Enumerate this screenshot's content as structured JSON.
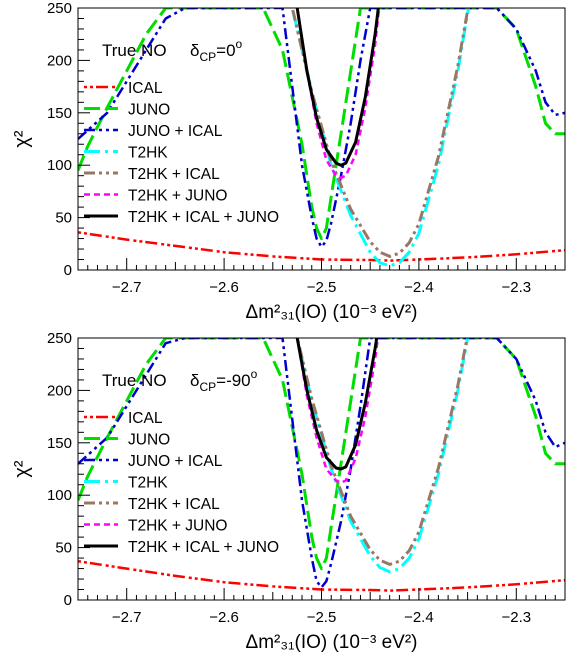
{
  "chart_data": [
    {
      "type": "line",
      "annotation": "True NO",
      "delta_label": "δ",
      "delta_sub": "CP",
      "delta_value": "=0",
      "delta_sup": "o",
      "xlabel": "Δm²₃₁(IO) (10⁻³ eV²)",
      "ylabel": "χ²",
      "xlim": [
        -2.75,
        -2.25
      ],
      "ylim": [
        0,
        250
      ],
      "xticks": [
        -2.7,
        -2.6,
        -2.5,
        -2.4,
        -2.3
      ],
      "xtick_labels": [
        "−2.7",
        "−2.6",
        "−2.5",
        "−2.4",
        "−2.3"
      ],
      "yticks": [
        0,
        50,
        100,
        150,
        200,
        250
      ],
      "ytick_labels": [
        "0",
        "50",
        "100",
        "150",
        "200",
        "250"
      ],
      "legend_position": "left",
      "series": [
        {
          "name": "ICAL",
          "color": "#ff0000",
          "dash": "dotdotdash",
          "width": 2.5,
          "x": [
            -2.75,
            -2.7,
            -2.65,
            -2.6,
            -2.55,
            -2.5,
            -2.45,
            -2.43,
            -2.4,
            -2.35,
            -2.3,
            -2.25
          ],
          "y": [
            36,
            29,
            23,
            17,
            13,
            10,
            9.5,
            9,
            10,
            12,
            15,
            19
          ]
        },
        {
          "name": "JUNO",
          "color": "#00dd00",
          "dash": "longdash",
          "width": 3,
          "x": [
            -2.75,
            -2.74,
            -2.72,
            -2.7,
            -2.68,
            -2.66,
            -2.65,
            -2.64,
            -2.62,
            -2.6,
            -2.58,
            -2.56,
            -2.54,
            -2.52,
            -2.51,
            -2.505,
            -2.5,
            -2.495,
            -2.49,
            -2.48,
            -2.46,
            -2.45,
            -2.44,
            -2.42,
            -2.4,
            -2.38,
            -2.36,
            -2.34,
            -2.32,
            -2.3,
            -2.28,
            -2.27,
            -2.26,
            -2.25
          ],
          "y": [
            95,
            118,
            155,
            190,
            225,
            250,
            250,
            250,
            250,
            250,
            250,
            250,
            210,
            120,
            60,
            40,
            30,
            40,
            70,
            130,
            250,
            250,
            250,
            250,
            250,
            250,
            250,
            250,
            250,
            230,
            175,
            140,
            130,
            130
          ]
        },
        {
          "name": "JUNO + ICAL",
          "color": "#0000cc",
          "dash": "dashdotdot",
          "width": 2.5,
          "x": [
            -2.75,
            -2.72,
            -2.7,
            -2.68,
            -2.66,
            -2.64,
            -2.62,
            -2.6,
            -2.58,
            -2.56,
            -2.54,
            -2.52,
            -2.51,
            -2.505,
            -2.5,
            -2.495,
            -2.49,
            -2.48,
            -2.47,
            -2.46,
            -2.45,
            -2.44,
            -2.42,
            -2.4,
            -2.38,
            -2.36,
            -2.34,
            -2.32,
            -2.3,
            -2.28,
            -2.27,
            -2.26,
            -2.25
          ],
          "y": [
            125,
            150,
            180,
            210,
            240,
            250,
            250,
            250,
            250,
            250,
            250,
            100,
            50,
            30,
            22,
            28,
            45,
            90,
            140,
            200,
            250,
            250,
            250,
            250,
            250,
            250,
            250,
            250,
            230,
            190,
            160,
            148,
            150
          ]
        },
        {
          "name": "T2HK",
          "color": "#00ffff",
          "dash": "dashdot",
          "width": 3,
          "x": [
            -2.55,
            -2.53,
            -2.51,
            -2.49,
            -2.47,
            -2.45,
            -2.44,
            -2.43,
            -2.42,
            -2.41,
            -2.4,
            -2.38,
            -2.36,
            -2.34
          ],
          "y": [
            300,
            250,
            170,
            100,
            52,
            17,
            7,
            4,
            7,
            17,
            35,
            100,
            190,
            300
          ]
        },
        {
          "name": "T2HK + ICAL",
          "color": "#997766",
          "dash": "dashdotdot",
          "width": 3,
          "x": [
            -2.55,
            -2.53,
            -2.51,
            -2.49,
            -2.47,
            -2.45,
            -2.44,
            -2.43,
            -2.42,
            -2.41,
            -2.4,
            -2.38,
            -2.36,
            -2.34
          ],
          "y": [
            300,
            250,
            170,
            104,
            58,
            27,
            17,
            13,
            16,
            26,
            44,
            108,
            195,
            300
          ]
        },
        {
          "name": "T2HK + JUNO",
          "color": "#ff00ff",
          "dash": "shortdash",
          "width": 2.5,
          "x": [
            -2.535,
            -2.525,
            -2.515,
            -2.505,
            -2.495,
            -2.485,
            -2.48,
            -2.475,
            -2.465,
            -2.455,
            -2.445,
            -2.435
          ],
          "y": [
            300,
            250,
            190,
            140,
            105,
            90,
            88,
            90,
            110,
            155,
            215,
            300
          ]
        },
        {
          "name": "T2HK + ICAL + JUNO",
          "color": "#000000",
          "dash": "solid",
          "width": 3,
          "x": [
            -2.535,
            -2.525,
            -2.515,
            -2.505,
            -2.495,
            -2.485,
            -2.48,
            -2.475,
            -2.465,
            -2.455,
            -2.445,
            -2.435
          ],
          "y": [
            300,
            250,
            190,
            145,
            115,
            102,
            100,
            102,
            122,
            165,
            225,
            300
          ]
        }
      ]
    },
    {
      "type": "line",
      "annotation": "True NO",
      "delta_label": "δ",
      "delta_sub": "CP",
      "delta_value": "=-90",
      "delta_sup": "o",
      "xlabel": "Δm²₃₁(IO) (10⁻³ eV²)",
      "ylabel": "χ²",
      "xlim": [
        -2.75,
        -2.25
      ],
      "ylim": [
        0,
        250
      ],
      "xticks": [
        -2.7,
        -2.6,
        -2.5,
        -2.4,
        -2.3
      ],
      "xtick_labels": [
        "−2.7",
        "−2.6",
        "−2.5",
        "−2.4",
        "−2.3"
      ],
      "yticks": [
        0,
        50,
        100,
        150,
        200,
        250
      ],
      "ytick_labels": [
        "0",
        "50",
        "100",
        "150",
        "200",
        "250"
      ],
      "legend_position": "left",
      "series": [
        {
          "name": "ICAL",
          "color": "#ff0000",
          "dash": "dotdotdash",
          "width": 2.5,
          "x": [
            -2.75,
            -2.7,
            -2.65,
            -2.6,
            -2.55,
            -2.5,
            -2.45,
            -2.43,
            -2.4,
            -2.35,
            -2.3,
            -2.25
          ],
          "y": [
            37,
            30,
            23,
            17,
            13,
            10,
            9.5,
            9,
            10,
            12,
            15,
            19
          ]
        },
        {
          "name": "JUNO",
          "color": "#00dd00",
          "dash": "longdash",
          "width": 3,
          "x": [
            -2.75,
            -2.74,
            -2.72,
            -2.7,
            -2.68,
            -2.66,
            -2.65,
            -2.64,
            -2.62,
            -2.6,
            -2.58,
            -2.56,
            -2.54,
            -2.52,
            -2.51,
            -2.505,
            -2.5,
            -2.495,
            -2.49,
            -2.48,
            -2.46,
            -2.45,
            -2.44,
            -2.42,
            -2.4,
            -2.38,
            -2.36,
            -2.34,
            -2.32,
            -2.3,
            -2.28,
            -2.27,
            -2.26,
            -2.25
          ],
          "y": [
            95,
            118,
            155,
            190,
            225,
            250,
            250,
            250,
            250,
            250,
            250,
            250,
            210,
            120,
            60,
            40,
            30,
            40,
            70,
            130,
            250,
            250,
            250,
            250,
            250,
            250,
            250,
            250,
            250,
            230,
            175,
            140,
            130,
            130
          ]
        },
        {
          "name": "JUNO + ICAL",
          "color": "#0000cc",
          "dash": "dashdotdot",
          "width": 2.5,
          "x": [
            -2.75,
            -2.72,
            -2.7,
            -2.68,
            -2.66,
            -2.64,
            -2.62,
            -2.6,
            -2.58,
            -2.56,
            -2.54,
            -2.52,
            -2.51,
            -2.505,
            -2.5,
            -2.495,
            -2.49,
            -2.48,
            -2.47,
            -2.46,
            -2.45,
            -2.44,
            -2.42,
            -2.4,
            -2.38,
            -2.36,
            -2.34,
            -2.32,
            -2.3,
            -2.28,
            -2.27,
            -2.26,
            -2.25
          ],
          "y": [
            130,
            155,
            185,
            215,
            245,
            250,
            250,
            250,
            250,
            250,
            250,
            95,
            40,
            18,
            12,
            18,
            35,
            75,
            125,
            185,
            250,
            250,
            250,
            250,
            250,
            250,
            250,
            250,
            230,
            190,
            160,
            146,
            150
          ]
        },
        {
          "name": "T2HK",
          "color": "#00ffff",
          "dash": "dashdot",
          "width": 3,
          "x": [
            -2.55,
            -2.53,
            -2.51,
            -2.49,
            -2.47,
            -2.45,
            -2.44,
            -2.43,
            -2.42,
            -2.41,
            -2.4,
            -2.38,
            -2.36,
            -2.34
          ],
          "y": [
            320,
            270,
            190,
            125,
            75,
            42,
            31,
            27,
            30,
            40,
            58,
            120,
            200,
            300
          ]
        },
        {
          "name": "T2HK + ICAL",
          "color": "#997766",
          "dash": "dashdotdot",
          "width": 3,
          "x": [
            -2.55,
            -2.53,
            -2.51,
            -2.49,
            -2.47,
            -2.45,
            -2.44,
            -2.43,
            -2.42,
            -2.41,
            -2.4,
            -2.38,
            -2.36,
            -2.34
          ],
          "y": [
            320,
            270,
            192,
            128,
            80,
            48,
            38,
            34,
            37,
            47,
            65,
            126,
            205,
            300
          ]
        },
        {
          "name": "T2HK + JUNO",
          "color": "#ff00ff",
          "dash": "shortdash",
          "width": 2.5,
          "x": [
            -2.535,
            -2.525,
            -2.515,
            -2.505,
            -2.495,
            -2.485,
            -2.48,
            -2.475,
            -2.465,
            -2.455,
            -2.445,
            -2.435
          ],
          "y": [
            300,
            250,
            195,
            155,
            125,
            114,
            112,
            114,
            135,
            175,
            230,
            300
          ]
        },
        {
          "name": "T2HK + ICAL + JUNO",
          "color": "#000000",
          "dash": "solid",
          "width": 3,
          "x": [
            -2.535,
            -2.525,
            -2.515,
            -2.505,
            -2.495,
            -2.485,
            -2.48,
            -2.475,
            -2.465,
            -2.455,
            -2.445,
            -2.435
          ],
          "y": [
            300,
            250,
            200,
            162,
            136,
            126,
            125,
            127,
            148,
            188,
            240,
            300
          ]
        }
      ]
    }
  ]
}
